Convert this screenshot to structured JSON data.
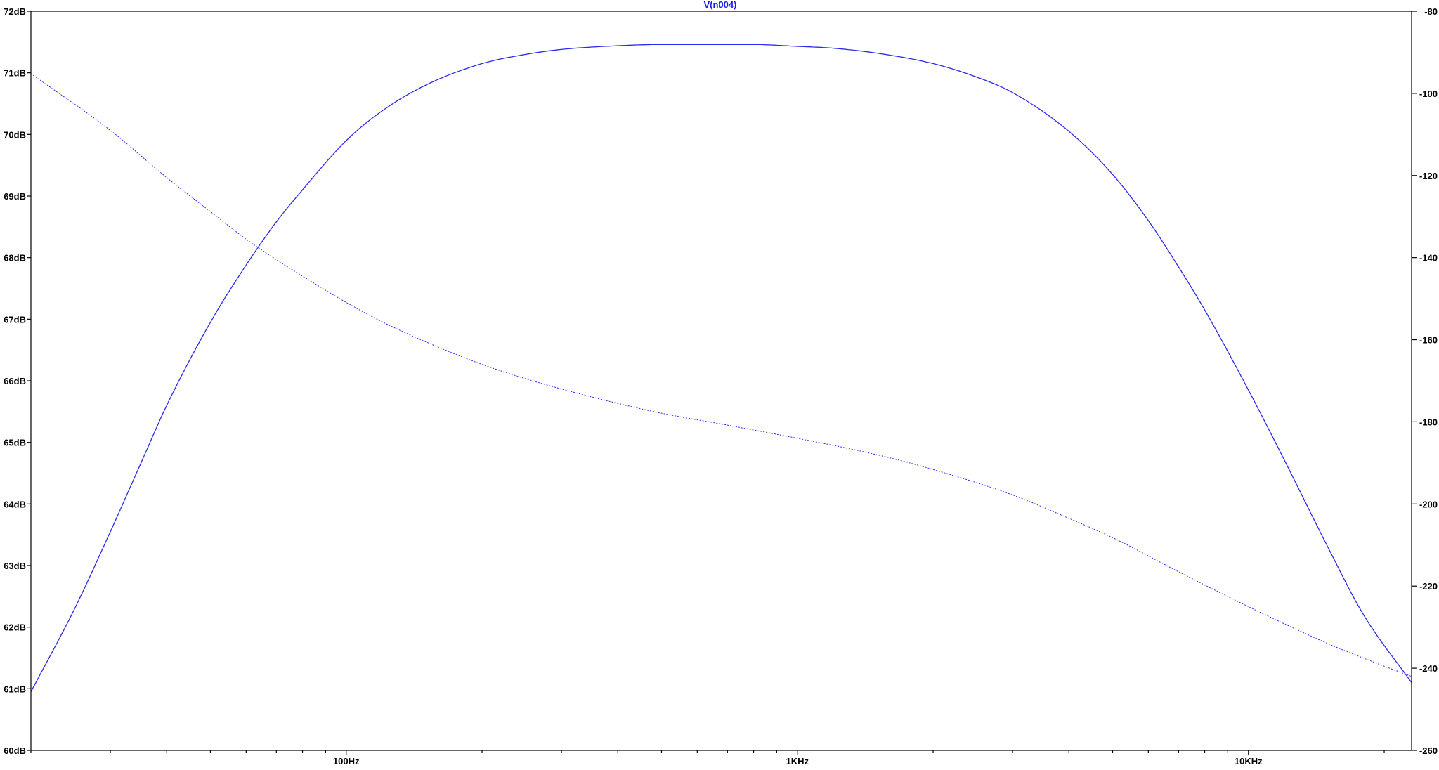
{
  "trace_label": "V(n004)",
  "colors": {
    "background": "#ffffff",
    "axis": "#000000",
    "trace": "#2b2bea",
    "trace_label": "#1a1af0",
    "tick_label": "#000000"
  },
  "chart_data": {
    "type": "line",
    "title": "V(n004)",
    "x_scale": "log",
    "xlim": [
      20,
      23000
    ],
    "x_ticks": [
      {
        "value": 100,
        "label": "100Hz"
      },
      {
        "value": 1000,
        "label": "1KHz"
      },
      {
        "value": 10000,
        "label": "10KHz"
      }
    ],
    "ylim_left": [
      60,
      72
    ],
    "y_left_ticks": [
      {
        "value": 72,
        "label": "72dB"
      },
      {
        "value": 71,
        "label": "71dB"
      },
      {
        "value": 70,
        "label": "70dB"
      },
      {
        "value": 69,
        "label": "69dB"
      },
      {
        "value": 68,
        "label": "68dB"
      },
      {
        "value": 67,
        "label": "67dB"
      },
      {
        "value": 66,
        "label": "66dB"
      },
      {
        "value": 65,
        "label": "65dB"
      },
      {
        "value": 64,
        "label": "64dB"
      },
      {
        "value": 63,
        "label": "63dB"
      },
      {
        "value": 62,
        "label": "62dB"
      },
      {
        "value": 61,
        "label": "61dB"
      },
      {
        "value": 60,
        "label": "60dB"
      }
    ],
    "ylim_right": [
      -260,
      -80
    ],
    "y_right_ticks": [
      {
        "value": -80,
        "label": "-80"
      },
      {
        "value": -100,
        "label": "-100"
      },
      {
        "value": -120,
        "label": "-120"
      },
      {
        "value": -140,
        "label": "-140"
      },
      {
        "value": -160,
        "label": "-160"
      },
      {
        "value": -180,
        "label": "-180"
      },
      {
        "value": -200,
        "label": "-200"
      },
      {
        "value": -220,
        "label": "-220"
      },
      {
        "value": -240,
        "label": "-240"
      },
      {
        "value": -260,
        "label": "-260"
      }
    ],
    "grid": false,
    "series": [
      {
        "axis": "left",
        "style": "solid",
        "x": [
          20,
          25,
          30,
          35,
          40,
          50,
          60,
          70,
          80,
          100,
          120,
          150,
          200,
          250,
          300,
          400,
          500,
          600,
          700,
          800,
          1000,
          1200,
          1500,
          2000,
          2500,
          3000,
          4000,
          5000,
          6000,
          7000,
          8000,
          10000,
          12000,
          15000,
          18000,
          23000
        ],
        "values": [
          60.95,
          62.3,
          63.55,
          64.65,
          65.6,
          66.95,
          67.88,
          68.58,
          69.1,
          69.9,
          70.38,
          70.8,
          71.15,
          71.3,
          71.38,
          71.44,
          71.46,
          71.46,
          71.46,
          71.46,
          71.43,
          71.4,
          71.32,
          71.15,
          70.93,
          70.68,
          70.05,
          69.35,
          68.6,
          67.85,
          67.15,
          65.85,
          64.72,
          63.3,
          62.2,
          61.1
        ]
      },
      {
        "axis": "right",
        "style": "dotted",
        "x": [
          20,
          30,
          40,
          50,
          60,
          70,
          80,
          100,
          120,
          150,
          200,
          250,
          300,
          400,
          500,
          700,
          1000,
          1500,
          2000,
          3000,
          4000,
          5000,
          7000,
          10000,
          15000,
          20000,
          23000
        ],
        "values": [
          -95.2,
          -109,
          -120.5,
          -128.8,
          -135.5,
          -140.5,
          -144.5,
          -150.9,
          -155.6,
          -160.5,
          -166,
          -169.5,
          -172,
          -175.5,
          -177.9,
          -180.8,
          -184,
          -188,
          -191.6,
          -197.8,
          -203.5,
          -208.2,
          -216.5,
          -225,
          -234,
          -239.5,
          -242
        ]
      }
    ]
  }
}
